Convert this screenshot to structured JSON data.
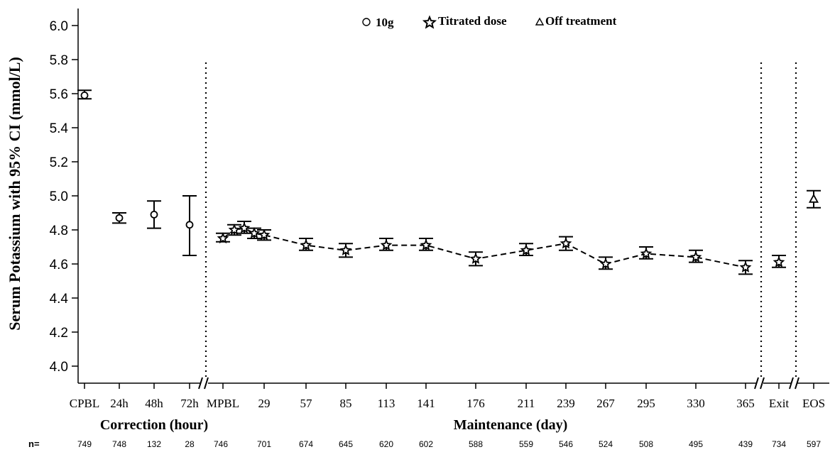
{
  "chart_data": {
    "type": "scatter",
    "ylabel": "Serum Potassium with 95% CI (mmol/L)",
    "ylim": [
      3.95,
      6.1
    ],
    "yticks": [
      4.0,
      4.2,
      4.4,
      4.6,
      4.8,
      5.0,
      5.2,
      5.4,
      5.6,
      5.8,
      6.0
    ],
    "legend": {
      "placement": "top-center",
      "entries": [
        "10g",
        "Titrated dose",
        "Off treatment"
      ]
    },
    "groups": [
      {
        "label": "Correction (hour)",
        "x_ticks": [
          "CPBL",
          "24h",
          "48h",
          "72h"
        ]
      },
      {
        "label": "Maintenance (day)",
        "x_ticks": [
          "MPBL",
          "29",
          "57",
          "85",
          "113",
          "141",
          "176",
          "211",
          "239",
          "267",
          "295",
          "330",
          "365"
        ]
      }
    ],
    "x_ticks_other": [
      "Exit",
      "EOS"
    ],
    "n_label": "n=",
    "series": [
      {
        "name": "10g",
        "marker": "circle",
        "connected": false,
        "points": [
          {
            "x": "CPBL",
            "y": 5.59,
            "lo": 5.57,
            "hi": 5.62
          },
          {
            "x": "24h",
            "y": 4.87,
            "lo": 4.84,
            "hi": 4.9
          },
          {
            "x": "48h",
            "y": 4.89,
            "lo": 4.81,
            "hi": 4.97
          },
          {
            "x": "72h",
            "y": 4.83,
            "lo": 4.65,
            "hi": 5.0
          }
        ]
      },
      {
        "name": "Titrated dose",
        "marker": "star",
        "connected": true,
        "points": [
          {
            "x": "MPBL",
            "y": 4.75,
            "lo": 4.73,
            "hi": 4.78
          },
          {
            "x": "2",
            "y": 4.8,
            "lo": 4.77,
            "hi": 4.83
          },
          {
            "x": "3",
            "y": 4.81,
            "lo": 4.78,
            "hi": 4.85
          },
          {
            "x": "4",
            "y": 4.78,
            "lo": 4.75,
            "hi": 4.81
          },
          {
            "x": "29",
            "y": 4.77,
            "lo": 4.74,
            "hi": 4.8
          },
          {
            "x": "57",
            "y": 4.71,
            "lo": 4.68,
            "hi": 4.75
          },
          {
            "x": "85",
            "y": 4.68,
            "lo": 4.64,
            "hi": 4.72
          },
          {
            "x": "113",
            "y": 4.71,
            "lo": 4.68,
            "hi": 4.75
          },
          {
            "x": "141",
            "y": 4.71,
            "lo": 4.68,
            "hi": 4.75
          },
          {
            "x": "176",
            "y": 4.63,
            "lo": 4.59,
            "hi": 4.67
          },
          {
            "x": "211",
            "y": 4.68,
            "lo": 4.65,
            "hi": 4.72
          },
          {
            "x": "239",
            "y": 4.72,
            "lo": 4.68,
            "hi": 4.76
          },
          {
            "x": "267",
            "y": 4.6,
            "lo": 4.57,
            "hi": 4.64
          },
          {
            "x": "295",
            "y": 4.66,
            "lo": 4.63,
            "hi": 4.7
          },
          {
            "x": "330",
            "y": 4.64,
            "lo": 4.61,
            "hi": 4.68
          },
          {
            "x": "365",
            "y": 4.58,
            "lo": 4.54,
            "hi": 4.62
          },
          {
            "x": "Exit",
            "y": 4.61,
            "lo": 4.58,
            "hi": 4.65
          }
        ]
      },
      {
        "name": "Off treatment",
        "marker": "triangle",
        "connected": false,
        "points": [
          {
            "x": "EOS",
            "y": 4.98,
            "lo": 4.93,
            "hi": 5.03
          }
        ]
      }
    ],
    "n_values": [
      {
        "x": "CPBL",
        "n": "749"
      },
      {
        "x": "24h",
        "n": "748"
      },
      {
        "x": "48h",
        "n": "132"
      },
      {
        "x": "72h",
        "n": "28"
      },
      {
        "x": "MPBL",
        "n": "746"
      },
      {
        "x": "29",
        "n": "701"
      },
      {
        "x": "57",
        "n": "674"
      },
      {
        "x": "85",
        "n": "645"
      },
      {
        "x": "113",
        "n": "620"
      },
      {
        "x": "141",
        "n": "602"
      },
      {
        "x": "176",
        "n": "588"
      },
      {
        "x": "211",
        "n": "559"
      },
      {
        "x": "239",
        "n": "546"
      },
      {
        "x": "267",
        "n": "524"
      },
      {
        "x": "295",
        "n": "508"
      },
      {
        "x": "330",
        "n": "495"
      },
      {
        "x": "365",
        "n": "439"
      },
      {
        "x": "Exit",
        "n": "734"
      },
      {
        "x": "EOS",
        "n": "597"
      }
    ]
  }
}
